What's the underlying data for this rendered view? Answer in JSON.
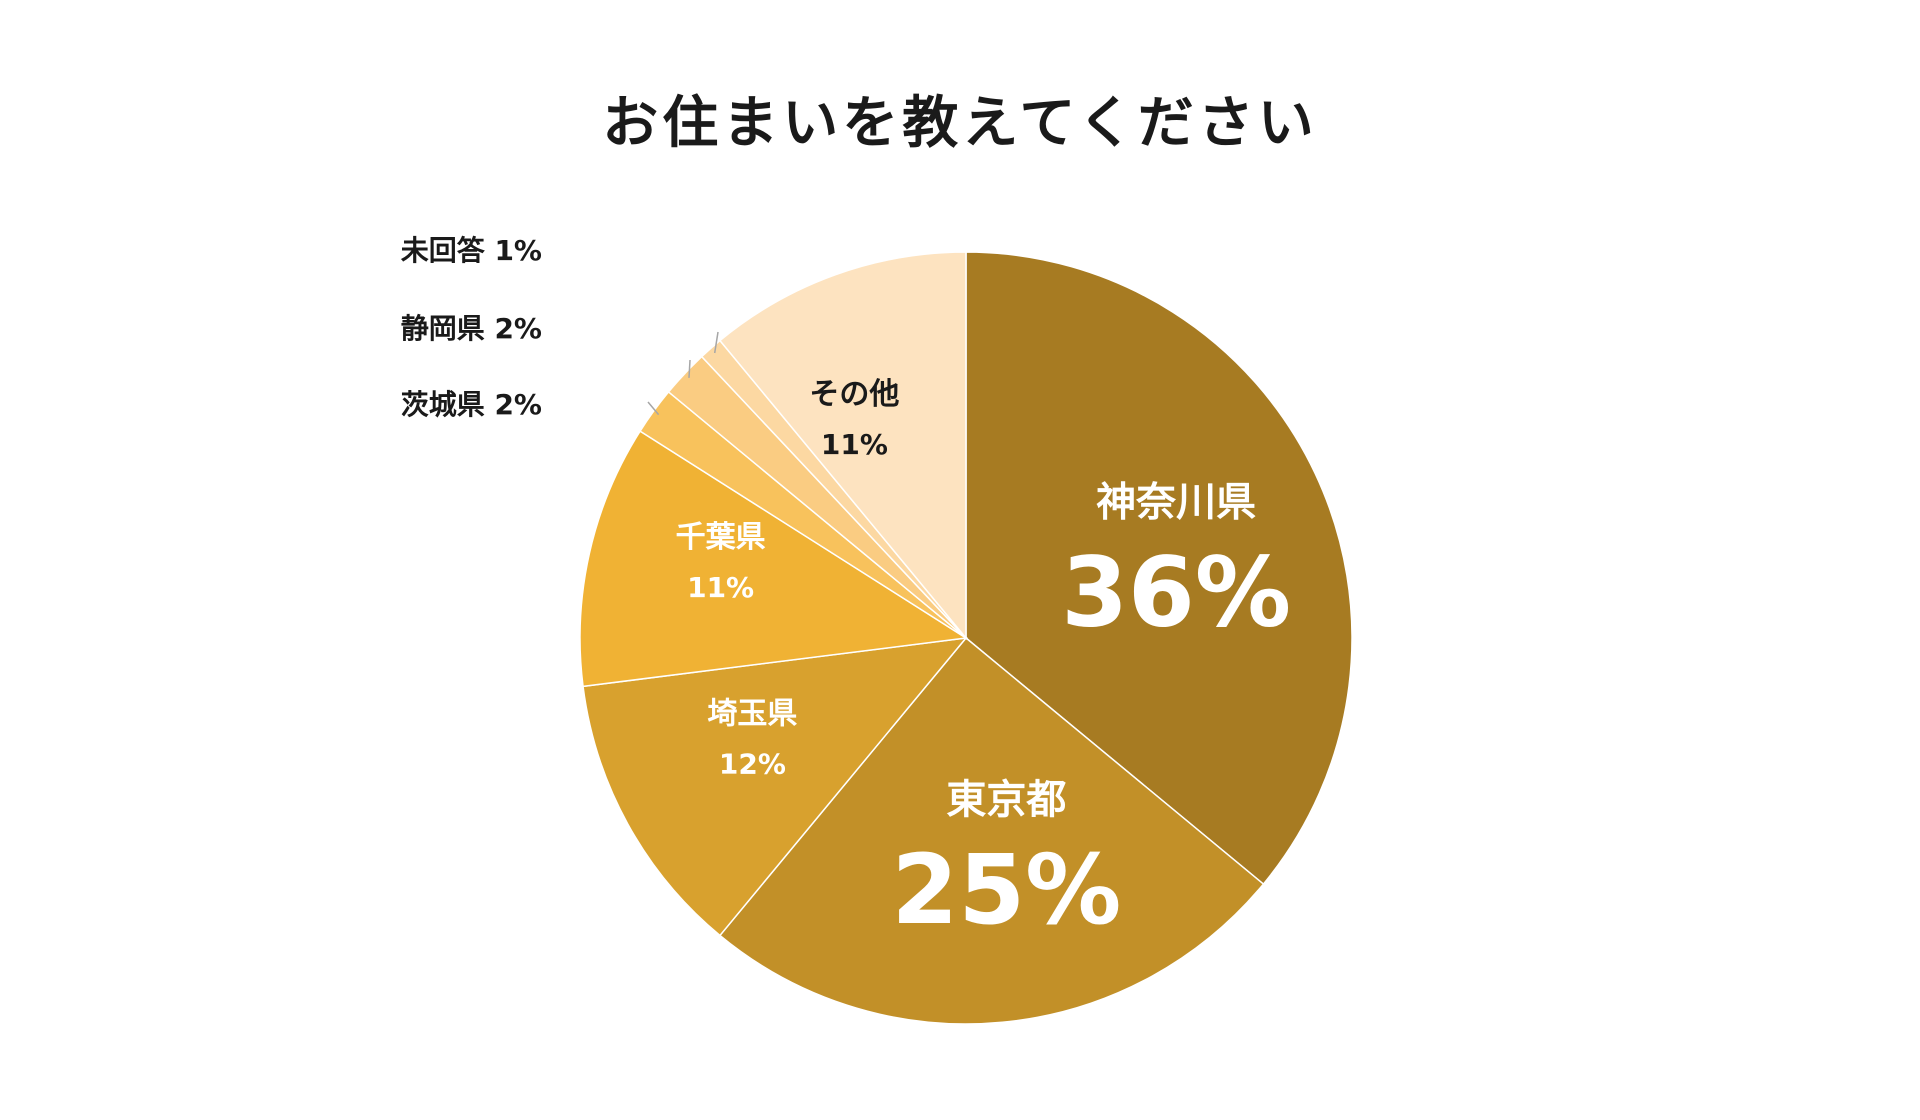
{
  "chart_data": {
    "type": "pie",
    "title": "お住まいを教えてください",
    "start": "12 o'clock",
    "direction": "clockwise",
    "slices": [
      {
        "name": "神奈川県",
        "value": 36,
        "value_label": "36%",
        "color": "#A77B22",
        "label_style": "inside-large"
      },
      {
        "name": "東京都",
        "value": 25,
        "value_label": "25%",
        "color": "#C29028",
        "label_style": "inside-large"
      },
      {
        "name": "埼玉県",
        "value": 12,
        "value_label": "12%",
        "color": "#D8A12E",
        "label_style": "inside"
      },
      {
        "name": "千葉県",
        "value": 11,
        "value_label": "11%",
        "color": "#F0B234",
        "label_style": "inside"
      },
      {
        "name": "茨城県",
        "value": 2,
        "value_label": "2%",
        "color": "#F8C25C",
        "label_style": "outside"
      },
      {
        "name": "静岡県",
        "value": 2,
        "value_label": "2%",
        "color": "#FACC82",
        "label_style": "outside"
      },
      {
        "name": "未回答",
        "value": 1,
        "value_label": "1%",
        "color": "#FCD8A2",
        "label_style": "outside"
      },
      {
        "name": "その他",
        "value": 11,
        "value_label": "11%",
        "color": "#FDE3C0",
        "label_style": "inside-dark"
      }
    ]
  }
}
